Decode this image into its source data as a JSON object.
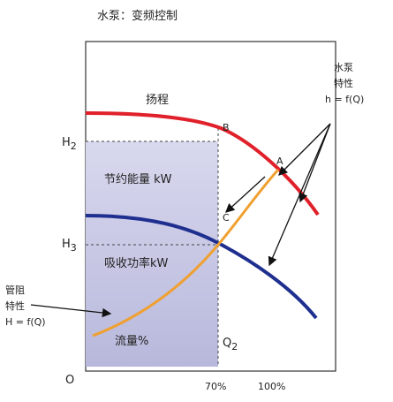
{
  "title": "水泵：变频控制",
  "labels": {
    "head": "扬程",
    "b": "B",
    "a": "A",
    "c": "C",
    "saved": "节约能量 kW",
    "absorbed": "吸收功率kW",
    "flow": "流量%",
    "origin": "O",
    "p70": "70%",
    "p100": "100%"
  },
  "h2": {
    "text": "H",
    "sub": "2"
  },
  "h3": {
    "text": "H",
    "sub": "3"
  },
  "q2": {
    "text": "Q",
    "sub": "2"
  },
  "pipe": [
    "管阻",
    "特性",
    "H = f(Q)"
  ],
  "pump": [
    "水泵",
    "特性",
    "h = f(Q)"
  ]
}
